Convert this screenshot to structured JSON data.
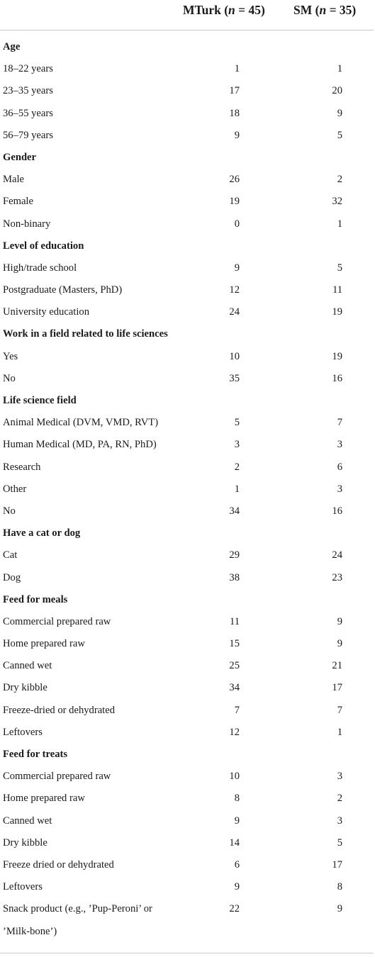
{
  "header": {
    "col1_prefix": "MTurk (",
    "col1_var": "n",
    "col1_suffix": " = 45)",
    "col2_prefix": "SM (",
    "col2_var": "n",
    "col2_suffix": " = 35)"
  },
  "rows": [
    {
      "type": "section",
      "label": "Age"
    },
    {
      "type": "data",
      "label": "18–22 years",
      "mturk": "1",
      "sm": "1"
    },
    {
      "type": "data",
      "label": "23–35 years",
      "mturk": "17",
      "sm": "20"
    },
    {
      "type": "data",
      "label": "36–55 years",
      "mturk": "18",
      "sm": "9"
    },
    {
      "type": "data",
      "label": "56–79 years",
      "mturk": "9",
      "sm": "5"
    },
    {
      "type": "section",
      "label": "Gender"
    },
    {
      "type": "data",
      "label": "Male",
      "mturk": "26",
      "sm": "2"
    },
    {
      "type": "data",
      "label": "Female",
      "mturk": "19",
      "sm": "32"
    },
    {
      "type": "data",
      "label": "Non-binary",
      "mturk": "0",
      "sm": "1"
    },
    {
      "type": "section",
      "label": "Level of education"
    },
    {
      "type": "data",
      "label": "High/trade school",
      "mturk": "9",
      "sm": "5"
    },
    {
      "type": "data",
      "label": "Postgraduate (Masters, PhD)",
      "mturk": "12",
      "sm": "11"
    },
    {
      "type": "data",
      "label": "University education",
      "mturk": "24",
      "sm": "19"
    },
    {
      "type": "section",
      "label": "Work in a field related to life sciences"
    },
    {
      "type": "data",
      "label": "Yes",
      "mturk": "10",
      "sm": "19"
    },
    {
      "type": "data",
      "label": "No",
      "mturk": "35",
      "sm": "16"
    },
    {
      "type": "section",
      "label": "Life science field"
    },
    {
      "type": "data",
      "label": "Animal Medical (DVM, VMD, RVT)",
      "mturk": "5",
      "sm": "7"
    },
    {
      "type": "data",
      "label": "Human Medical (MD, PA, RN, PhD)",
      "mturk": "3",
      "sm": "3"
    },
    {
      "type": "data",
      "label": "Research",
      "mturk": "2",
      "sm": "6"
    },
    {
      "type": "data",
      "label": "Other",
      "mturk": "1",
      "sm": "3"
    },
    {
      "type": "data",
      "label": "No",
      "mturk": "34",
      "sm": "16"
    },
    {
      "type": "section",
      "label": "Have a cat or dog"
    },
    {
      "type": "data",
      "label": "Cat",
      "mturk": "29",
      "sm": "24"
    },
    {
      "type": "data",
      "label": "Dog",
      "mturk": "38",
      "sm": "23"
    },
    {
      "type": "section",
      "label": "Feed for meals"
    },
    {
      "type": "data",
      "label": "Commercial prepared raw",
      "mturk": "11",
      "sm": "9"
    },
    {
      "type": "data",
      "label": "Home prepared raw",
      "mturk": "15",
      "sm": "9"
    },
    {
      "type": "data",
      "label": "Canned wet",
      "mturk": "25",
      "sm": "21"
    },
    {
      "type": "data",
      "label": "Dry kibble",
      "mturk": "34",
      "sm": "17"
    },
    {
      "type": "data",
      "label": "Freeze-dried or dehydrated",
      "mturk": "7",
      "sm": "7"
    },
    {
      "type": "data",
      "label": "Leftovers",
      "mturk": "12",
      "sm": "1"
    },
    {
      "type": "section",
      "label": "Feed for treats"
    },
    {
      "type": "data",
      "label": "Commercial prepared raw",
      "mturk": "10",
      "sm": "3"
    },
    {
      "type": "data",
      "label": "Home prepared raw",
      "mturk": "8",
      "sm": "2"
    },
    {
      "type": "data",
      "label": "Canned wet",
      "mturk": "9",
      "sm": "3"
    },
    {
      "type": "data",
      "label": "Dry kibble",
      "mturk": "14",
      "sm": "5"
    },
    {
      "type": "data",
      "label": "Freeze dried or dehydrated",
      "mturk": "6",
      "sm": "17"
    },
    {
      "type": "data",
      "label": "Leftovers",
      "mturk": "9",
      "sm": "8"
    },
    {
      "type": "data",
      "label": "Snack product (e.g., ’Pup-Peroni’ or ’Milk-bone’)",
      "mturk": "22",
      "sm": "9",
      "tall": true
    }
  ]
}
